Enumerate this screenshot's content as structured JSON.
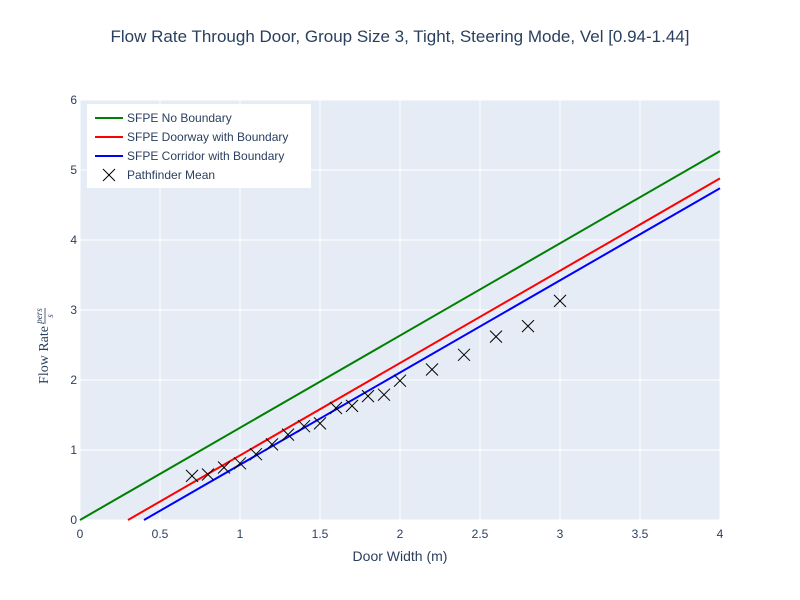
{
  "chart_data": {
    "type": "line",
    "title": "Flow Rate Through Door, Group Size 3, Tight, Steering Mode, Vel [0.94-1.44]",
    "xlabel": "Door Width (m)",
    "ylabel": {
      "text": "Flow Rate",
      "numerator": "pers",
      "denominator": "s"
    },
    "xlim": [
      0,
      4
    ],
    "ylim": [
      0,
      6
    ],
    "x_ticks": [
      "0",
      "0.5",
      "1",
      "1.5",
      "2",
      "2.5",
      "3",
      "3.5",
      "4"
    ],
    "y_ticks": [
      "0",
      "1",
      "2",
      "3",
      "4",
      "5",
      "6"
    ],
    "grid": true,
    "legend_position": "top-left",
    "background": "#e5ecf6",
    "series": [
      {
        "name": "SFPE No Boundary",
        "type": "line",
        "color": "#008000",
        "x": [
          0,
          4
        ],
        "y": [
          0,
          5.27
        ]
      },
      {
        "name": "SFPE Doorway with Boundary",
        "type": "line",
        "color": "#ff0000",
        "x": [
          0.3,
          4
        ],
        "y": [
          0,
          4.88
        ]
      },
      {
        "name": "SFPE Corridor with Boundary",
        "type": "line",
        "color": "#0000ff",
        "x": [
          0.4,
          4
        ],
        "y": [
          0,
          4.74
        ]
      },
      {
        "name": "Pathfinder Mean",
        "type": "scatter",
        "marker": "x",
        "color": "#000000",
        "x": [
          0.7,
          0.8,
          0.9,
          1.0,
          1.1,
          1.2,
          1.3,
          1.4,
          1.5,
          1.6,
          1.7,
          1.8,
          1.9,
          2.0,
          2.2,
          2.4,
          2.6,
          2.8,
          3.0
        ],
        "y": [
          0.63,
          0.65,
          0.75,
          0.81,
          0.94,
          1.08,
          1.22,
          1.34,
          1.38,
          1.6,
          1.63,
          1.77,
          1.79,
          1.99,
          2.15,
          2.36,
          2.62,
          2.77,
          3.13
        ]
      }
    ]
  }
}
